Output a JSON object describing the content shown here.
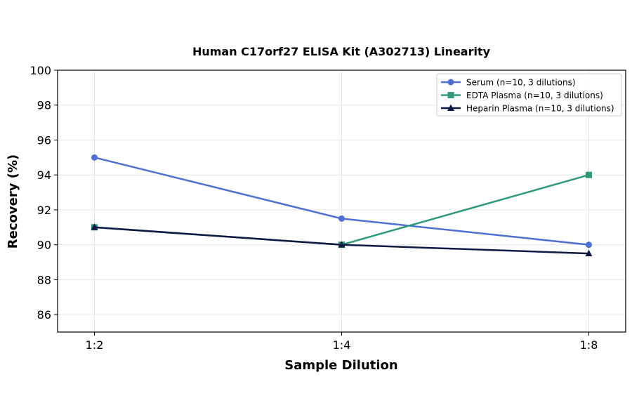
{
  "chart_data": {
    "type": "line",
    "title": "Human C17orf27 ELISA Kit (A302713) Linearity",
    "xlabel": "Sample Dilution",
    "ylabel": "Recovery (%)",
    "categories": [
      "1:2",
      "1:4",
      "1:8"
    ],
    "ylim": [
      85,
      100
    ],
    "yticks": [
      86,
      88,
      90,
      92,
      94,
      96,
      98,
      100
    ],
    "grid": true,
    "legend_position": "top-right",
    "series": [
      {
        "name": "Serum (n=10, 3 dilutions)",
        "values": [
          95,
          91.5,
          90
        ],
        "color": "#4e6fd4",
        "marker": "circle"
      },
      {
        "name": "EDTA Plasma (n=10, 3 dilutions)",
        "values": [
          91,
          90,
          94
        ],
        "color": "#2e9a7a",
        "marker": "square"
      },
      {
        "name": "Heparin Plasma (n=10, 3 dilutions)",
        "values": [
          91,
          90,
          89.5
        ],
        "color": "#0e1a45",
        "marker": "triangle"
      }
    ]
  }
}
